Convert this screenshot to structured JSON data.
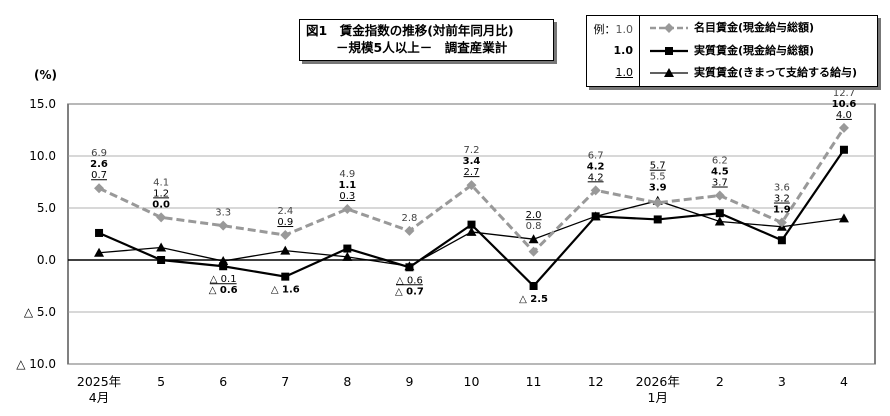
{
  "title": {
    "line1": "図1　賃金指数の推移(対前年同月比)",
    "line2": "－規模5人以上－　調査産業計"
  },
  "legend": {
    "example_label": "例：",
    "example_values": [
      "1.0",
      "1.0",
      "1.0"
    ],
    "items": [
      "名目賃金(現金給与総額)",
      "実質賃金(現金給与総額)",
      "実質賃金(きまって支給する給与)"
    ]
  },
  "chart_data": {
    "type": "line",
    "ylabel": "(%)",
    "ylim": [
      -10,
      15
    ],
    "yticks": [
      15,
      10,
      5,
      0,
      -5,
      -10
    ],
    "ytick_labels": [
      "15.0",
      "10.0",
      "5.0",
      "0.0",
      "△ 5.0",
      "△ 10.0"
    ],
    "categories": [
      "2025年\n4月",
      "5",
      "6",
      "7",
      "8",
      "9",
      "10",
      "11",
      "12",
      "2026年\n1月",
      "2",
      "3",
      "4"
    ],
    "grid": true,
    "legend_position": "top-right",
    "series": [
      {
        "name": "名目賃金(現金給与総額)",
        "values": [
          6.9,
          4.1,
          3.3,
          2.4,
          4.9,
          2.8,
          7.2,
          0.8,
          6.7,
          5.5,
          6.2,
          3.6,
          12.7
        ],
        "labels": [
          "6.9",
          "4.1",
          "3.3",
          "2.4",
          "4.9",
          "2.8",
          "7.2",
          "0.8",
          "6.7",
          "5.5",
          "6.2",
          "3.6",
          "12.7"
        ],
        "color": "#999999",
        "dash": true,
        "marker": "diamond"
      },
      {
        "name": "実質賃金(現金給与総額)",
        "values": [
          2.6,
          0.0,
          -0.6,
          -1.6,
          1.1,
          -0.7,
          3.4,
          -2.5,
          4.2,
          3.9,
          4.5,
          1.9,
          10.6
        ],
        "labels": [
          "2.6",
          "0.0",
          "△ 0.6",
          "△ 1.6",
          "1.1",
          "△ 0.7",
          "3.4",
          "△ 2.5",
          "4.2",
          "3.9",
          "4.5",
          "1.9",
          "10.6"
        ],
        "color": "#000000",
        "dash": false,
        "marker": "square"
      },
      {
        "name": "実質賃金(きまって支給する給与)",
        "values": [
          0.7,
          1.2,
          -0.1,
          0.9,
          0.3,
          -0.6,
          2.7,
          2.0,
          4.2,
          5.7,
          3.7,
          3.2,
          4.0
        ],
        "labels": [
          "0.7",
          "1.2",
          "△ 0.1",
          "0.9",
          "0.3",
          "△ 0.6",
          "2.7",
          "2.0",
          "4.2",
          "5.7",
          "3.7",
          "3.2",
          "4.0"
        ],
        "color": "#000000",
        "dash": false,
        "marker": "triangle"
      }
    ]
  }
}
